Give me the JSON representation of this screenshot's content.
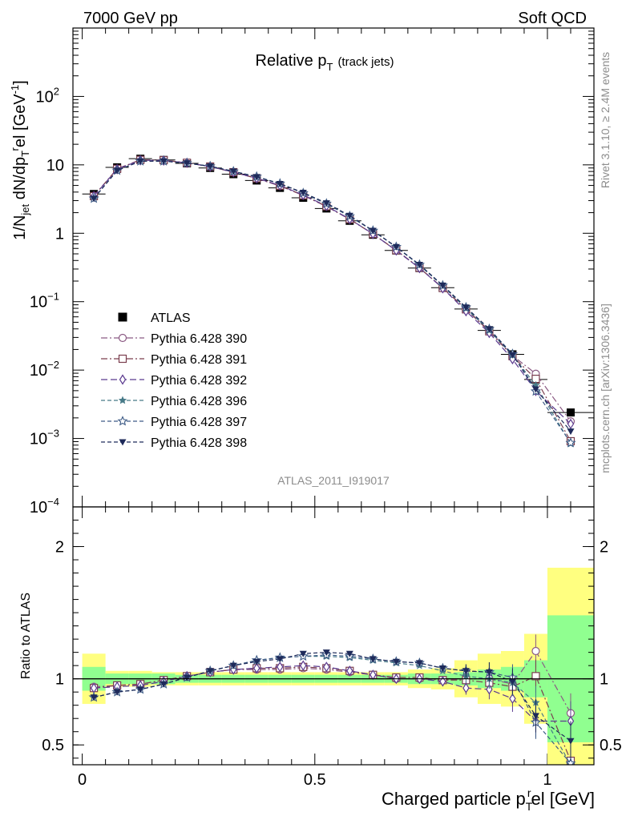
{
  "header": {
    "left": "7000 GeV pp",
    "right": "Soft QCD"
  },
  "side_labels": {
    "rivet": "Rivet 3.1.10, ≥ 2.4M events",
    "mcplots": "mcplots.cern.ch [arXiv:1306.3436]"
  },
  "chart_data": {
    "type": "scatter",
    "title": "Relative pT (track jets)",
    "title_main": "Relative p",
    "title_sub": "T",
    "title_extra": "(track jets)",
    "analysis_id": "ATLAS_2011_I919017",
    "xlabel": "Charged particle pTrel [GeV]",
    "xlabel_main": "Charged particle p",
    "xlabel_sub": "T",
    "xlabel_sup": "r",
    "xlabel_tail": "el [GeV]",
    "ylabel": "1/Njet dN/dpTrel [GeV^-1]",
    "ylabel_ratio": "Ratio to ATLAS",
    "xlim": [
      -0.02,
      1.1
    ],
    "ylim_main": [
      0.0001,
      1000
    ],
    "ylim_ratio": [
      0.35,
      2.3
    ],
    "yscale_main": "log",
    "x_ticks": [
      {
        "v": 0,
        "label": "0"
      },
      {
        "v": 0.5,
        "label": "0.5"
      },
      {
        "v": 1,
        "label": "1"
      }
    ],
    "y_ticks_main": [
      {
        "exp": -4,
        "label": "10",
        "sup": "−4"
      },
      {
        "exp": -3,
        "label": "10",
        "sup": "−3"
      },
      {
        "exp": -2,
        "label": "10",
        "sup": "−2"
      },
      {
        "exp": -1,
        "label": "10",
        "sup": "−1"
      },
      {
        "exp": 0,
        "label": "1",
        "sup": ""
      },
      {
        "exp": 1,
        "label": "10",
        "sup": ""
      },
      {
        "exp": 2,
        "label": "10",
        "sup": "2"
      }
    ],
    "y_ticks_ratio": [
      {
        "v": 0.5,
        "label": "0.5"
      },
      {
        "v": 1,
        "label": "1"
      },
      {
        "v": 2,
        "label": "2"
      }
    ],
    "bins": [
      [
        0,
        0.05
      ],
      [
        0.05,
        0.1
      ],
      [
        0.1,
        0.15
      ],
      [
        0.15,
        0.2
      ],
      [
        0.2,
        0.25
      ],
      [
        0.25,
        0.3
      ],
      [
        0.3,
        0.35
      ],
      [
        0.35,
        0.4
      ],
      [
        0.4,
        0.45
      ],
      [
        0.45,
        0.5
      ],
      [
        0.5,
        0.55
      ],
      [
        0.55,
        0.6
      ],
      [
        0.6,
        0.65
      ],
      [
        0.65,
        0.7
      ],
      [
        0.7,
        0.75
      ],
      [
        0.75,
        0.8
      ],
      [
        0.8,
        0.85
      ],
      [
        0.85,
        0.9
      ],
      [
        0.9,
        0.95
      ],
      [
        0.95,
        1.0
      ],
      [
        1.0,
        1.1
      ]
    ],
    "x": [
      0.025,
      0.075,
      0.125,
      0.175,
      0.225,
      0.275,
      0.325,
      0.375,
      0.425,
      0.475,
      0.525,
      0.575,
      0.625,
      0.675,
      0.725,
      0.775,
      0.825,
      0.875,
      0.925,
      0.975,
      1.05
    ],
    "data": {
      "name": "ATLAS",
      "values": [
        3.75,
        9.2,
        12.3,
        11.8,
        10.5,
        9.0,
        7.3,
        5.9,
        4.6,
        3.3,
        2.3,
        1.52,
        0.95,
        0.56,
        0.31,
        0.16,
        0.078,
        0.038,
        0.017,
        0.0073,
        0.0024
      ],
      "band_inner": [
        0.09,
        0.04,
        0.04,
        0.04,
        0.03,
        0.03,
        0.03,
        0.03,
        0.03,
        0.03,
        0.03,
        0.03,
        0.03,
        0.03,
        0.04,
        0.04,
        0.05,
        0.07,
        0.09,
        0.14,
        0.48
      ],
      "band_outer": [
        0.19,
        0.06,
        0.06,
        0.05,
        0.05,
        0.05,
        0.05,
        0.05,
        0.05,
        0.05,
        0.05,
        0.05,
        0.05,
        0.05,
        0.07,
        0.08,
        0.14,
        0.19,
        0.21,
        0.34,
        0.84
      ]
    },
    "series": [
      {
        "name": "Pythia 6.428 390",
        "color": "#8b5a83",
        "marker": "circle-open",
        "dash": "8,3,2,3",
        "ratio": [
          0.94,
          0.95,
          0.96,
          0.99,
          1.02,
          1.05,
          1.07,
          1.07,
          1.07,
          1.08,
          1.07,
          1.05,
          1.03,
          1.0,
          1.0,
          0.99,
          1.0,
          1.0,
          0.96,
          1.21,
          0.74
        ]
      },
      {
        "name": "Pythia 6.428 391",
        "color": "#7a3d4e",
        "marker": "square-open",
        "dash": "8,3,2,3",
        "ratio": [
          0.93,
          0.95,
          0.96,
          0.99,
          1.02,
          1.05,
          1.07,
          1.08,
          1.08,
          1.09,
          1.08,
          1.06,
          1.03,
          1.01,
          1.01,
          0.99,
          0.99,
          0.97,
          0.94,
          1.02,
          0.38
        ]
      },
      {
        "name": "Pythia 6.428 392",
        "color": "#5b3a8f",
        "marker": "diamond-open",
        "dash": "8,4",
        "ratio": [
          0.93,
          0.94,
          0.95,
          0.98,
          1.02,
          1.05,
          1.07,
          1.08,
          1.09,
          1.1,
          1.09,
          1.06,
          1.03,
          1.0,
          1.0,
          0.98,
          0.93,
          0.92,
          0.85,
          0.68,
          0.68
        ]
      },
      {
        "name": "Pythia 6.428 396",
        "color": "#477a88",
        "marker": "star-filled",
        "dash": "5,3",
        "ratio": [
          0.86,
          0.9,
          0.92,
          0.96,
          1.01,
          1.06,
          1.1,
          1.14,
          1.16,
          1.17,
          1.17,
          1.16,
          1.14,
          1.12,
          1.1,
          1.06,
          1.02,
          1.0,
          0.97,
          0.82,
          0.35
        ]
      },
      {
        "name": "Pythia 6.428 397",
        "color": "#3d5b86",
        "marker": "star-open",
        "dash": "5,3",
        "ratio": [
          0.86,
          0.9,
          0.92,
          0.96,
          1.01,
          1.06,
          1.1,
          1.14,
          1.16,
          1.17,
          1.18,
          1.17,
          1.15,
          1.13,
          1.12,
          1.08,
          1.06,
          1.05,
          1.01,
          0.67,
          0.36
        ]
      },
      {
        "name": "Pythia 6.428 398",
        "color": "#1e2a5a",
        "marker": "triangle-down-filled",
        "dash": "5,3",
        "ratio": [
          0.86,
          0.9,
          0.92,
          0.96,
          1.01,
          1.06,
          1.1,
          1.13,
          1.15,
          1.19,
          1.2,
          1.19,
          1.15,
          1.13,
          1.12,
          1.08,
          1.06,
          1.05,
          0.98,
          0.72,
          0.53
        ]
      }
    ]
  }
}
